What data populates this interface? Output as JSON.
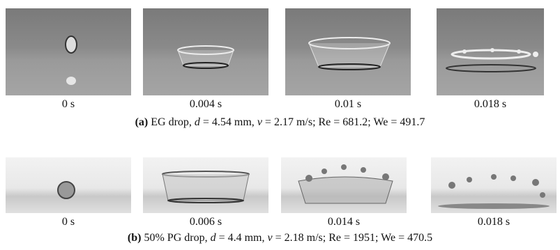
{
  "panels": [
    {
      "frames": [
        "0 s",
        "0.004 s",
        "0.01 s",
        "0.018 s"
      ],
      "caption": [
        "(a)",
        " EG drop, ",
        "d",
        " = 4.54 mm, ",
        "v",
        " = 2.17 m/s; Re = 681.2; We = 491.7"
      ]
    },
    {
      "frames": [
        "0 s",
        "0.006 s",
        "0.014 s",
        "0.018 s"
      ],
      "caption": [
        "(b)",
        " 50% PG drop, ",
        "d",
        " = 4.4 mm, ",
        "v",
        " = 2.18 m/s; Re = 1951; We = 470.5"
      ]
    }
  ]
}
